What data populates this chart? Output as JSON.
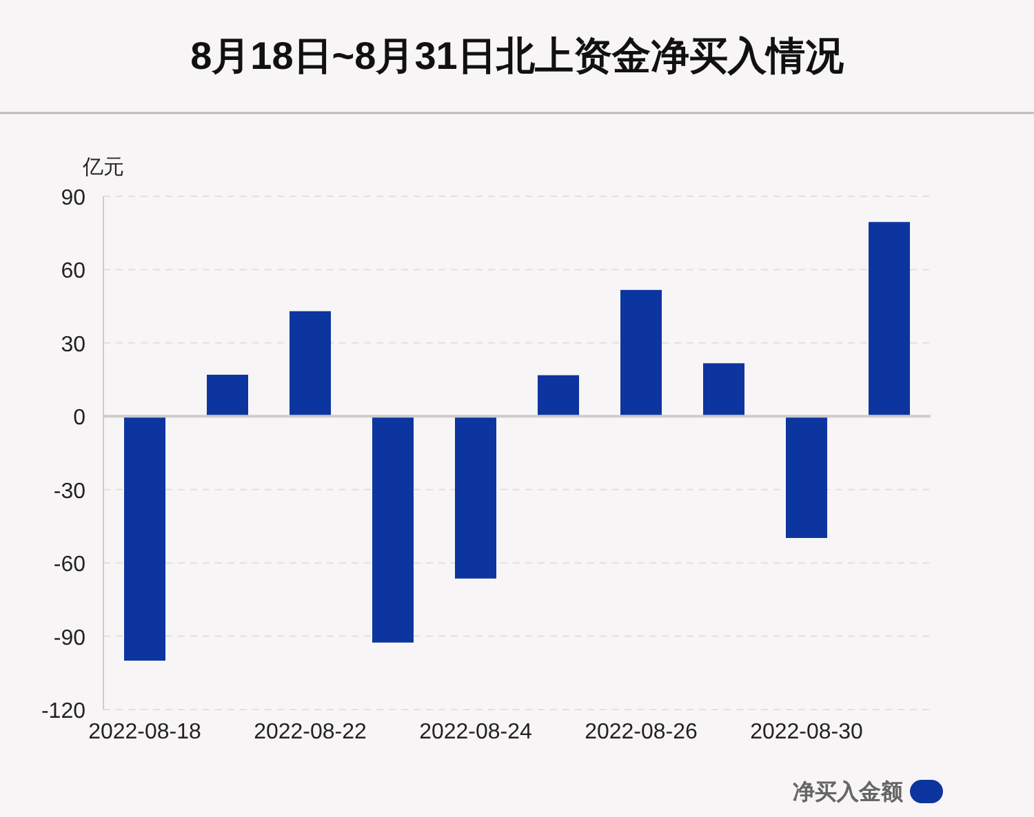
{
  "chart_data": {
    "type": "bar",
    "title": "8月18日~8月31日北上资金净买入情况",
    "ylabel": "亿元",
    "categories": [
      "2022-08-18",
      null,
      "2022-08-22",
      null,
      "2022-08-24",
      null,
      "2022-08-26",
      null,
      "2022-08-30",
      null
    ],
    "series": [
      {
        "name": "净买入金额",
        "color": "#0d359f",
        "values": [
          -100,
          17,
          43,
          -92.6,
          -66.4,
          16.8,
          51.7,
          21.7,
          -49.8,
          79.5
        ]
      }
    ],
    "ylim": [
      -120,
      90
    ],
    "yticks": [
      -120,
      -90,
      -60,
      -30,
      0,
      30,
      60,
      90
    ],
    "grid": "y",
    "legend": "bottom right"
  }
}
